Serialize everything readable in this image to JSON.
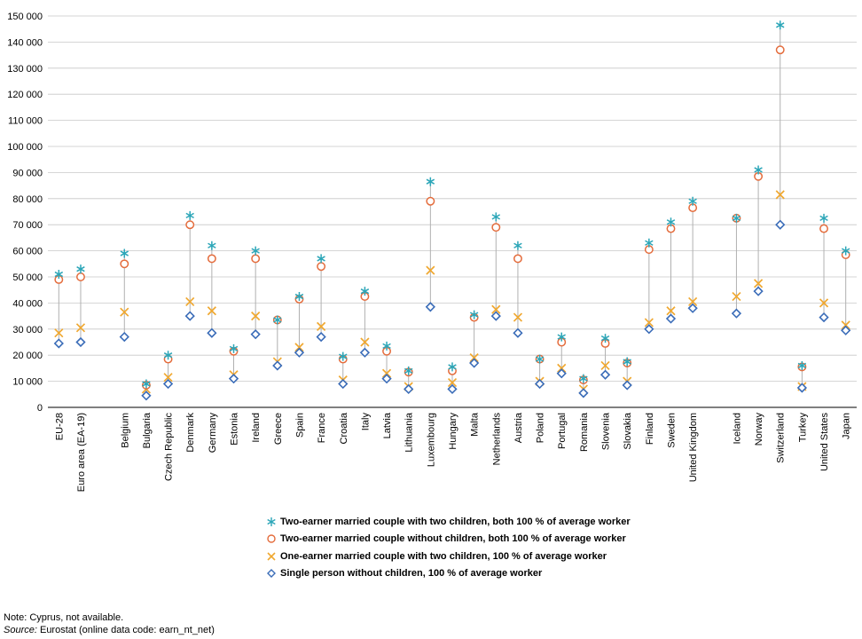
{
  "chart_data": {
    "type": "scatter",
    "title": "",
    "xlabel": "",
    "ylabel": "",
    "ylim": [
      0,
      150000
    ],
    "yticks": [
      "0",
      "10 000",
      "20 000",
      "30 000",
      "40 000",
      "50 000",
      "60 000",
      "70 000",
      "80 000",
      "90 000",
      "100 000",
      "110 000",
      "120 000",
      "130 000",
      "140 000",
      "150 000"
    ],
    "grid": true,
    "legend_position": "bottom",
    "categories": [
      "EU-28",
      "Euro area (EA-19)",
      "Belgium",
      "Bulgaria",
      "Czech Republic",
      "Denmark",
      "Germany",
      "Estonia",
      "Ireland",
      "Greece",
      "Spain",
      "France",
      "Croatia",
      "Italy",
      "Latvia",
      "Lithuania",
      "Luxembourg",
      "Hungary",
      "Malta",
      "Netherlands",
      "Austria",
      "Poland",
      "Portugal",
      "Romania",
      "Slovenia",
      "Slovakia",
      "Finland",
      "Sweden",
      "United Kingdom",
      "Iceland",
      "Norway",
      "Switzerland",
      "Turkey",
      "United States",
      "Japan"
    ],
    "series": [
      {
        "name": "Two-earner married couple with two children, both 100 % of average worker",
        "marker": "star",
        "color": "#2ca6b8",
        "values": [
          51000,
          53000,
          59000,
          9000,
          20000,
          73500,
          62000,
          22500,
          60000,
          33500,
          42500,
          57000,
          19500,
          44500,
          23500,
          14000,
          86500,
          15500,
          35500,
          73000,
          62000,
          18500,
          27000,
          11000,
          26500,
          17500,
          63000,
          71000,
          79000,
          72500,
          91000,
          146500,
          16000,
          72500,
          60000
        ]
      },
      {
        "name": "Two-earner married couple without children, both 100 % of average worker",
        "marker": "circle",
        "color": "#e46c3c",
        "values": [
          49000,
          50000,
          55000,
          8500,
          18500,
          70000,
          57000,
          21500,
          57000,
          33500,
          41500,
          54000,
          18500,
          42500,
          21500,
          13500,
          79000,
          14000,
          34500,
          69000,
          57000,
          18500,
          25000,
          10500,
          24500,
          17000,
          60500,
          68500,
          76500,
          72500,
          88500,
          137000,
          15500,
          68500,
          58500
        ]
      },
      {
        "name": "One-earner married couple with two children, 100 % of average worker",
        "marker": "x",
        "color": "#f0a830",
        "values": [
          28500,
          30500,
          36500,
          7000,
          11500,
          40500,
          37000,
          12500,
          35000,
          17500,
          23000,
          31000,
          10500,
          25000,
          13000,
          8000,
          52500,
          9500,
          19000,
          37500,
          34500,
          10000,
          15000,
          7000,
          16000,
          10000,
          32500,
          37000,
          40500,
          42500,
          47500,
          81500,
          8000,
          40000,
          31500
        ]
      },
      {
        "name": "Single person without children, 100 % of average worker",
        "marker": "diamond",
        "color": "#3a6cb8",
        "values": [
          24500,
          25000,
          27000,
          4500,
          9000,
          35000,
          28500,
          11000,
          28000,
          16000,
          21000,
          27000,
          9000,
          21000,
          11000,
          7000,
          38500,
          7000,
          17000,
          35000,
          28500,
          9000,
          13000,
          5500,
          12500,
          8500,
          30000,
          34000,
          38000,
          36000,
          44500,
          70000,
          7500,
          34500,
          29500
        ]
      }
    ]
  },
  "footnotes": {
    "note": "Note: Cyprus, not available.",
    "source_label": "Source:",
    "source_text": " Eurostat (online data code: earn_nt_net)"
  }
}
